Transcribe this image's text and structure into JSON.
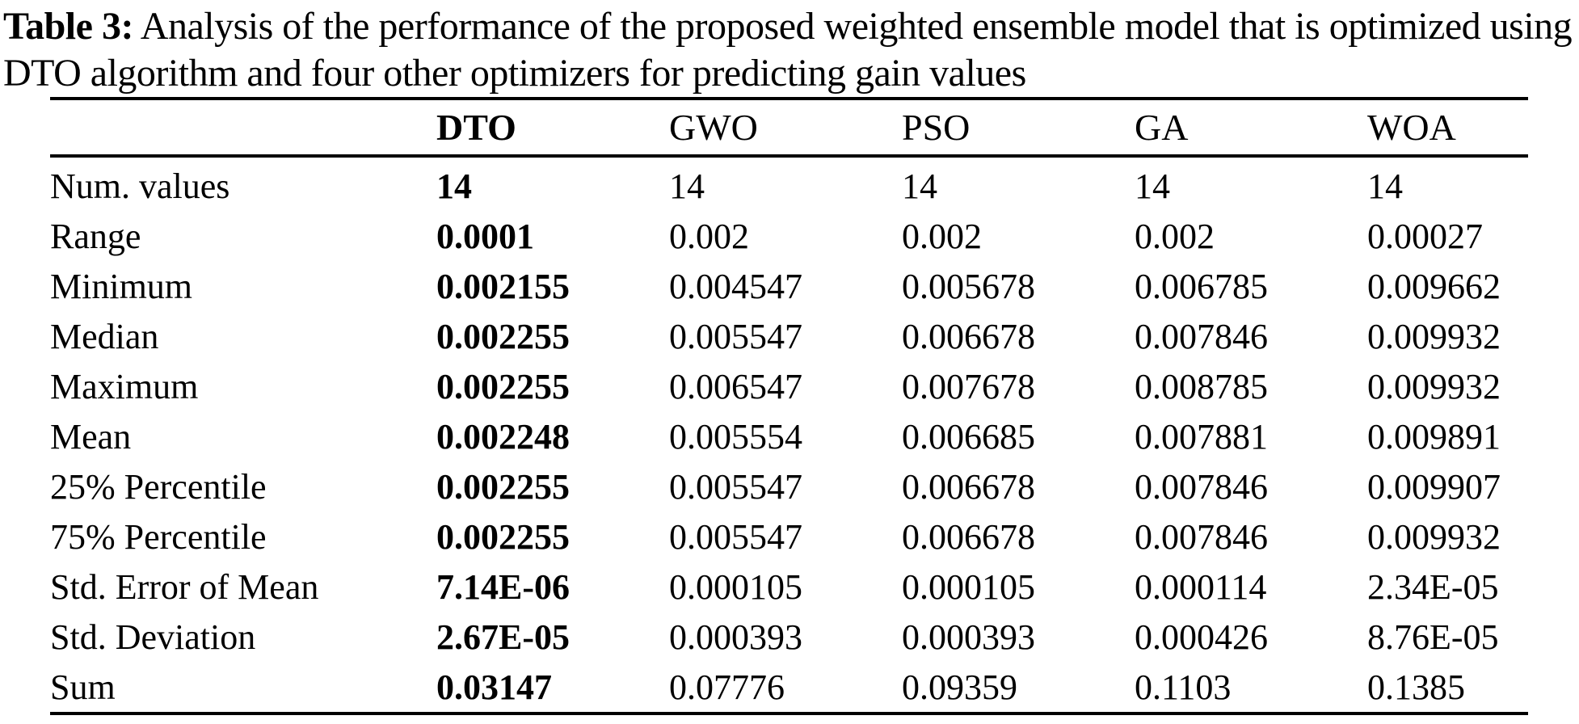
{
  "caption": {
    "label": "Table 3:",
    "text": "Analysis of the performance of the proposed weighted ensemble model that is optimized using DTO algorithm and four other optimizers for predicting gain values"
  },
  "table": {
    "header": [
      "DTO",
      "GWO",
      "PSO",
      "GA",
      "WOA"
    ],
    "rows": [
      {
        "label": "Num. values",
        "values": [
          "14",
          "14",
          "14",
          "14",
          "14"
        ]
      },
      {
        "label": "Range",
        "values": [
          "0.0001",
          "0.002",
          "0.002",
          "0.002",
          "0.00027"
        ]
      },
      {
        "label": "Minimum",
        "values": [
          "0.002155",
          "0.004547",
          "0.005678",
          "0.006785",
          "0.009662"
        ]
      },
      {
        "label": "Median",
        "values": [
          "0.002255",
          "0.005547",
          "0.006678",
          "0.007846",
          "0.009932"
        ]
      },
      {
        "label": "Maximum",
        "values": [
          "0.002255",
          "0.006547",
          "0.007678",
          "0.008785",
          "0.009932"
        ]
      },
      {
        "label": "Mean",
        "values": [
          "0.002248",
          "0.005554",
          "0.006685",
          "0.007881",
          "0.009891"
        ]
      },
      {
        "label": "25% Percentile",
        "values": [
          "0.002255",
          "0.005547",
          "0.006678",
          "0.007846",
          "0.009907"
        ]
      },
      {
        "label": "75% Percentile",
        "values": [
          "0.002255",
          "0.005547",
          "0.006678",
          "0.007846",
          "0.009932"
        ]
      },
      {
        "label": "Std. Error of Mean",
        "values": [
          "7.14E-06",
          "0.000105",
          "0.000105",
          "0.000114",
          "2.34E-05"
        ]
      },
      {
        "label": "Std. Deviation",
        "values": [
          "2.67E-05",
          "0.000393",
          "0.000393",
          "0.000426",
          "8.76E-05"
        ]
      },
      {
        "label": "Sum",
        "values": [
          "0.03147",
          "0.07776",
          "0.09359",
          "0.1103",
          "0.1385"
        ]
      }
    ]
  },
  "colors": {
    "text": "#000000",
    "background": "#ffffff",
    "rule": "#000000"
  }
}
